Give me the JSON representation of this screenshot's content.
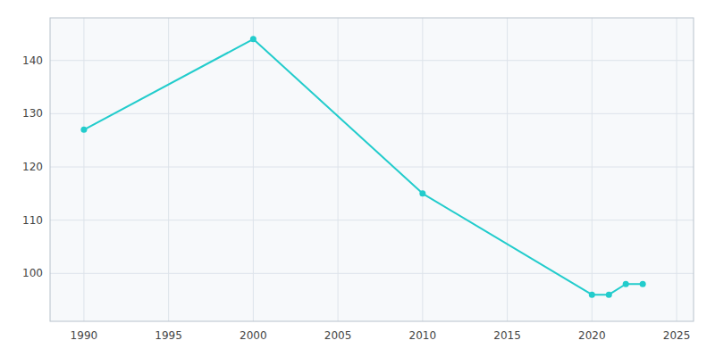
{
  "chart_data": {
    "type": "line",
    "x": [
      1990,
      2000,
      2010,
      2020,
      2021,
      2022,
      2023
    ],
    "values": [
      127,
      144,
      115,
      96,
      96,
      98,
      98
    ],
    "color": "#22CCCC",
    "marker": "circle",
    "xlim": [
      1988,
      2026
    ],
    "ylim": [
      91,
      148
    ],
    "xticks": [
      1990,
      1995,
      2000,
      2005,
      2010,
      2015,
      2020,
      2025
    ],
    "yticks": [
      100,
      110,
      120,
      130,
      140
    ],
    "grid": true
  }
}
